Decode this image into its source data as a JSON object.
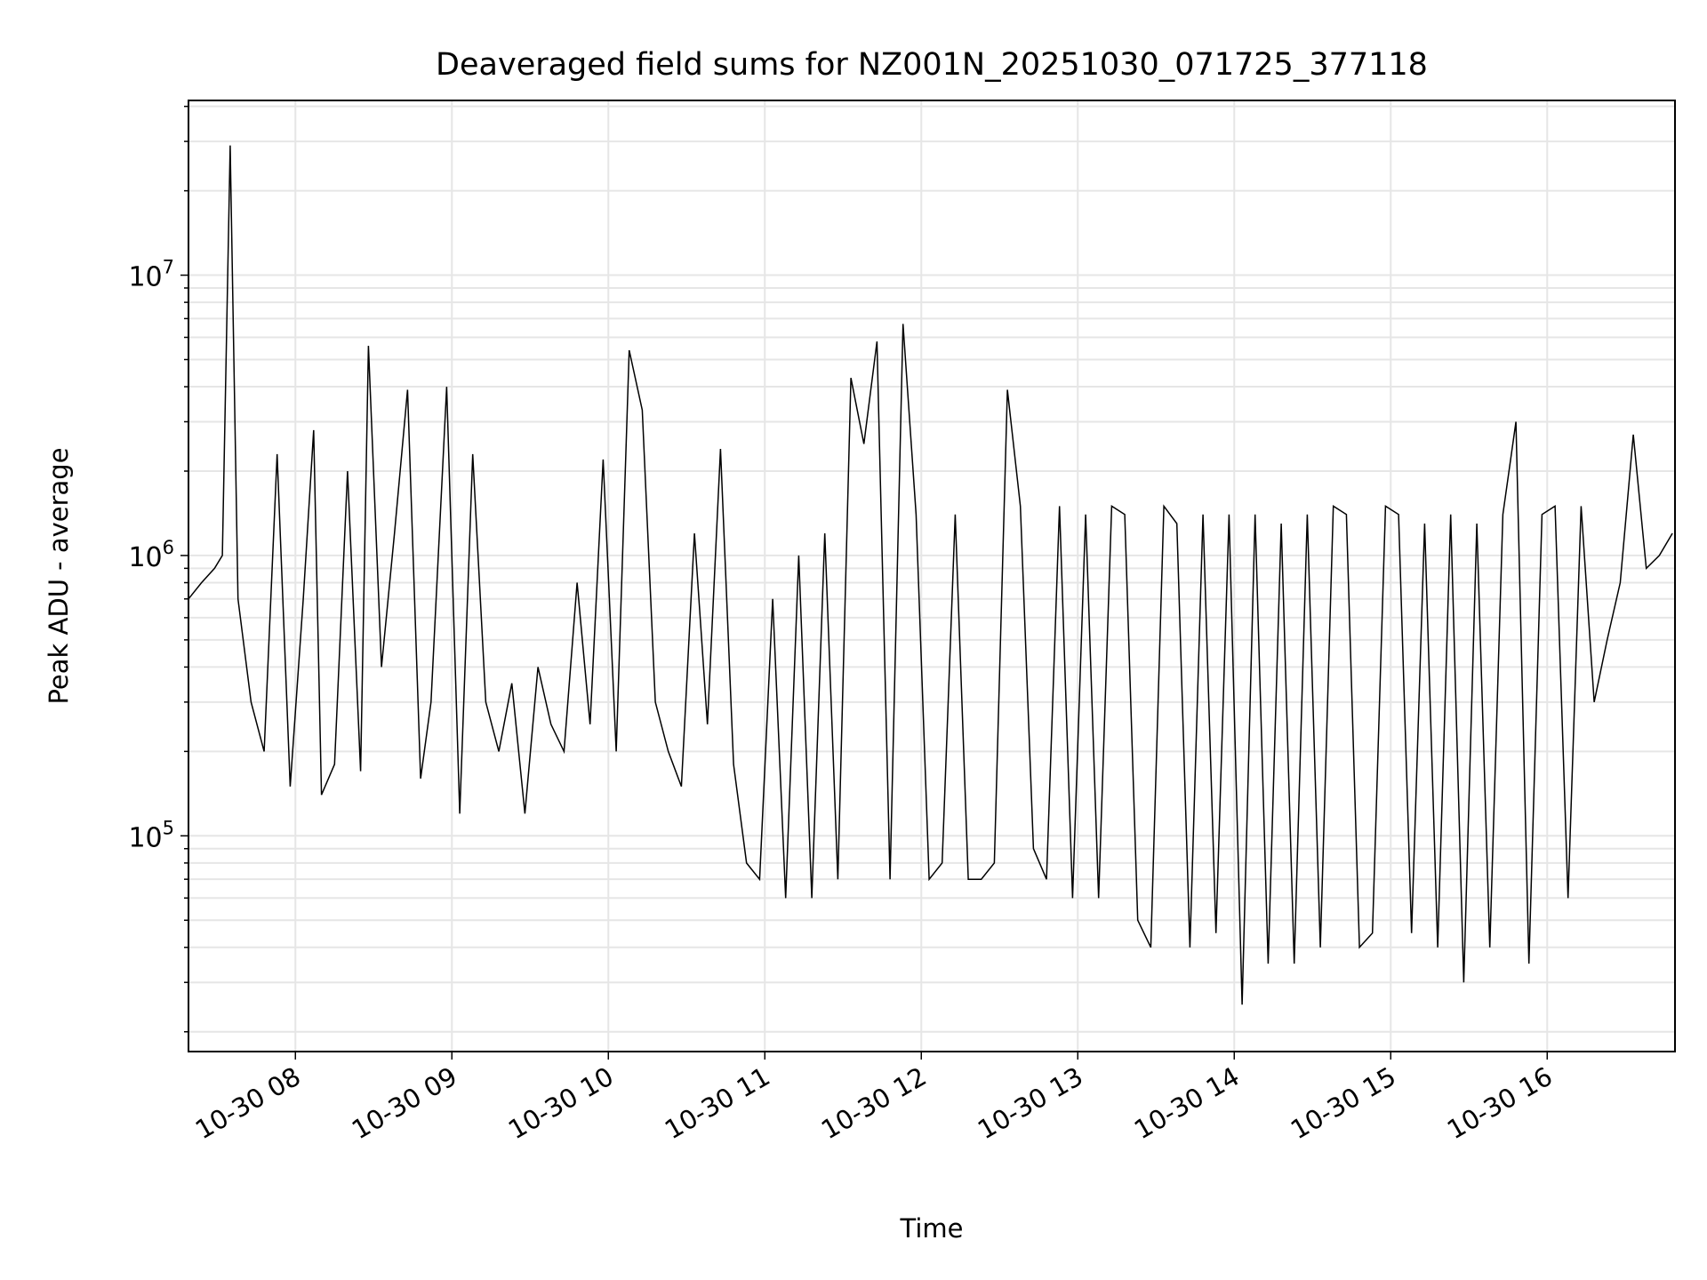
{
  "chart_data": {
    "type": "line",
    "title": "Deaveraged field sums for NZ001N_20251030_071725_377118",
    "xlabel": "Time",
    "ylabel": "Peak ADU - average",
    "yscale": "log",
    "ylim": [
      17000,
      42000000
    ],
    "xlim": [
      "2025-10-30 07:19",
      "2025-10-30 16:49"
    ],
    "grid": true,
    "line_color": "#000000",
    "x_ticks": [
      {
        "value": "2025-10-30 08:00",
        "label": "10-30 08"
      },
      {
        "value": "2025-10-30 09:00",
        "label": "10-30 09"
      },
      {
        "value": "2025-10-30 10:00",
        "label": "10-30 10"
      },
      {
        "value": "2025-10-30 11:00",
        "label": "10-30 11"
      },
      {
        "value": "2025-10-30 12:00",
        "label": "10-30 12"
      },
      {
        "value": "2025-10-30 13:00",
        "label": "10-30 13"
      },
      {
        "value": "2025-10-30 14:00",
        "label": "10-30 14"
      },
      {
        "value": "2025-10-30 15:00",
        "label": "10-30 15"
      },
      {
        "value": "2025-10-30 16:00",
        "label": "10-30 16"
      }
    ],
    "y_ticks": [
      {
        "value": 100000,
        "base": "10",
        "exp": "5"
      },
      {
        "value": 1000000,
        "base": "10",
        "exp": "6"
      },
      {
        "value": 10000000,
        "base": "10",
        "exp": "7"
      }
    ],
    "series": [
      {
        "x": [
          "2025-10-30 07:19",
          "2025-10-30 07:24",
          "2025-10-30 07:29",
          "2025-10-30 07:32",
          "2025-10-30 07:35",
          "2025-10-30 07:38",
          "2025-10-30 07:43",
          "2025-10-30 07:48",
          "2025-10-30 07:53",
          "2025-10-30 07:58",
          "2025-10-30 08:03",
          "2025-10-30 08:07",
          "2025-10-30 08:10",
          "2025-10-30 08:15",
          "2025-10-30 08:20",
          "2025-10-30 08:25",
          "2025-10-30 08:28",
          "2025-10-30 08:33",
          "2025-10-30 08:38",
          "2025-10-30 08:43",
          "2025-10-30 08:48",
          "2025-10-30 08:52",
          "2025-10-30 08:58",
          "2025-10-30 09:03",
          "2025-10-30 09:08",
          "2025-10-30 09:13",
          "2025-10-30 09:18",
          "2025-10-30 09:23",
          "2025-10-30 09:28",
          "2025-10-30 09:33",
          "2025-10-30 09:38",
          "2025-10-30 09:43",
          "2025-10-30 09:48",
          "2025-10-30 09:53",
          "2025-10-30 09:58",
          "2025-10-30 10:03",
          "2025-10-30 10:08",
          "2025-10-30 10:13",
          "2025-10-30 10:18",
          "2025-10-30 10:23",
          "2025-10-30 10:28",
          "2025-10-30 10:33",
          "2025-10-30 10:38",
          "2025-10-30 10:43",
          "2025-10-30 10:48",
          "2025-10-30 10:53",
          "2025-10-30 10:58",
          "2025-10-30 11:03",
          "2025-10-30 11:08",
          "2025-10-30 11:13",
          "2025-10-30 11:18",
          "2025-10-30 11:23",
          "2025-10-30 11:28",
          "2025-10-30 11:33",
          "2025-10-30 11:38",
          "2025-10-30 11:43",
          "2025-10-30 11:48",
          "2025-10-30 11:53",
          "2025-10-30 11:58",
          "2025-10-30 12:03",
          "2025-10-30 12:08",
          "2025-10-30 12:13",
          "2025-10-30 12:18",
          "2025-10-30 12:23",
          "2025-10-30 12:28",
          "2025-10-30 12:33",
          "2025-10-30 12:38",
          "2025-10-30 12:43",
          "2025-10-30 12:48",
          "2025-10-30 12:53",
          "2025-10-30 12:58",
          "2025-10-30 13:03",
          "2025-10-30 13:08",
          "2025-10-30 13:13",
          "2025-10-30 13:18",
          "2025-10-30 13:23",
          "2025-10-30 13:28",
          "2025-10-30 13:33",
          "2025-10-30 13:38",
          "2025-10-30 13:43",
          "2025-10-30 13:48",
          "2025-10-30 13:53",
          "2025-10-30 13:58",
          "2025-10-30 14:03",
          "2025-10-30 14:08",
          "2025-10-30 14:13",
          "2025-10-30 14:18",
          "2025-10-30 14:23",
          "2025-10-30 14:28",
          "2025-10-30 14:33",
          "2025-10-30 14:38",
          "2025-10-30 14:43",
          "2025-10-30 14:48",
          "2025-10-30 14:53",
          "2025-10-30 14:58",
          "2025-10-30 15:03",
          "2025-10-30 15:08",
          "2025-10-30 15:13",
          "2025-10-30 15:18",
          "2025-10-30 15:23",
          "2025-10-30 15:28",
          "2025-10-30 15:33",
          "2025-10-30 15:38",
          "2025-10-30 15:43",
          "2025-10-30 15:48",
          "2025-10-30 15:53",
          "2025-10-30 15:58",
          "2025-10-30 16:03",
          "2025-10-30 16:08",
          "2025-10-30 16:13",
          "2025-10-30 16:18",
          "2025-10-30 16:23",
          "2025-10-30 16:28",
          "2025-10-30 16:33",
          "2025-10-30 16:38",
          "2025-10-30 16:43",
          "2025-10-30 16:48"
        ],
        "y": [
          700000,
          800000,
          900000,
          1000000,
          29000000,
          700000,
          300000,
          200000,
          2300000,
          150000,
          700000,
          2800000,
          140000,
          180000,
          2000000,
          170000,
          5600000,
          400000,
          1200000,
          3900000,
          160000,
          300000,
          4000000,
          120000,
          2300000,
          300000,
          200000,
          350000,
          120000,
          400000,
          250000,
          200000,
          800000,
          250000,
          2200000,
          200000,
          5400000,
          3300000,
          300000,
          200000,
          150000,
          1200000,
          250000,
          2400000,
          180000,
          80000,
          70000,
          700000,
          60000,
          1000000,
          60000,
          1200000,
          70000,
          4300000,
          2500000,
          5800000,
          70000,
          6700000,
          1400000,
          70000,
          80000,
          1400000,
          70000,
          70000,
          80000,
          3900000,
          1500000,
          90000,
          70000,
          1500000,
          60000,
          1400000,
          60000,
          1500000,
          1400000,
          50000,
          40000,
          1500000,
          1300000,
          40000,
          1400000,
          45000,
          1400000,
          25000,
          1400000,
          35000,
          1300000,
          35000,
          1400000,
          40000,
          1500000,
          1400000,
          40000,
          45000,
          1500000,
          1400000,
          45000,
          1300000,
          40000,
          1400000,
          30000,
          1300000,
          40000,
          1400000,
          3000000,
          35000,
          1400000,
          1500000,
          60000,
          1500000,
          300000,
          500000,
          800000,
          2700000,
          900000,
          1000000,
          1200000
        ]
      }
    ]
  }
}
